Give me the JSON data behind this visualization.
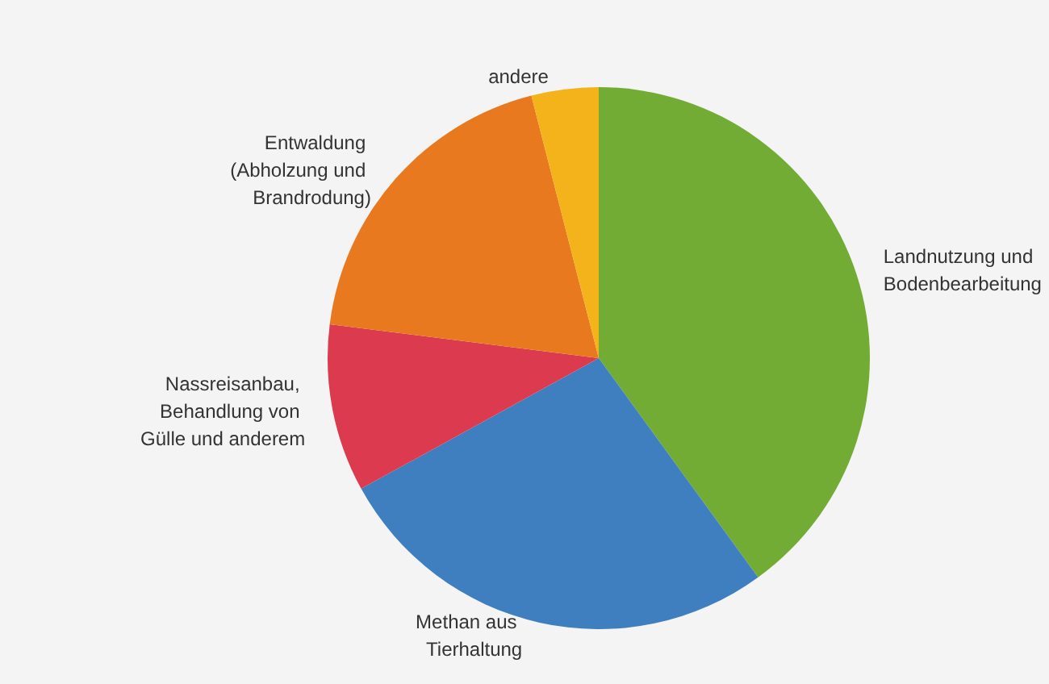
{
  "chart_data": {
    "type": "pie",
    "categories": [
      "Landnutzung und Bodenbearbeitung",
      "Methan aus Tierhaltung",
      "Nassreisanbau, Behandlung von Gülle und anderem",
      "Entwaldung (Abholzung und Brandrodung)",
      "andere"
    ],
    "values": [
      40,
      27,
      10,
      19,
      4
    ],
    "colors": [
      "#72ac35",
      "#3f7fc0",
      "#dc3a4e",
      "#e8791e",
      "#f4b31b"
    ]
  }
}
